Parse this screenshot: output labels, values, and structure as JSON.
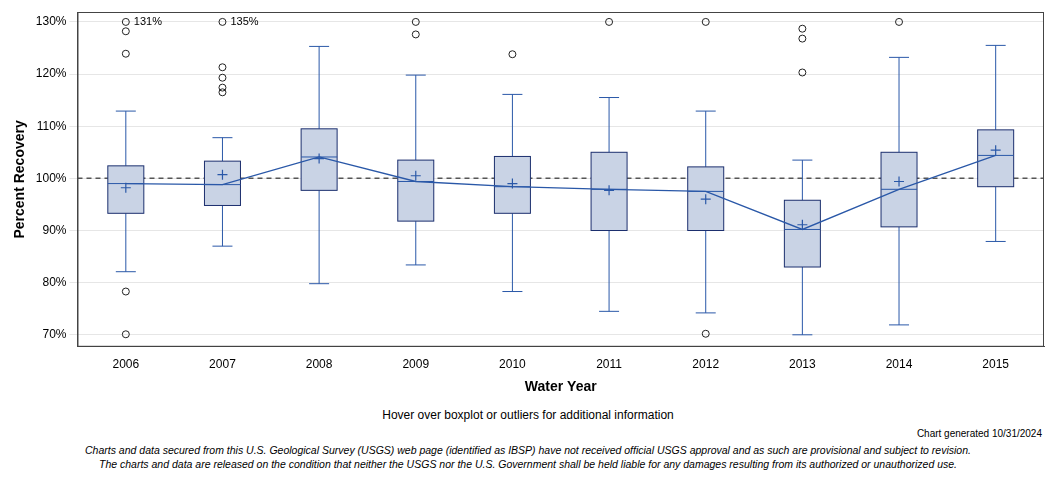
{
  "chart_data": {
    "type": "boxplot",
    "x_label": "Water Year",
    "y_label": "Percent Recovery",
    "categories": [
      "2006",
      "2007",
      "2008",
      "2009",
      "2010",
      "2011",
      "2012",
      "2013",
      "2014",
      "2015"
    ],
    "boxes": [
      {
        "whisker_low": 82.1,
        "q1": 93.3,
        "median": 99.0,
        "q3": 102.4,
        "whisker_high": 112.9,
        "mean": 98.2,
        "outliers": [
          130,
          128.2,
          123.9,
          78.3,
          70.1
        ]
      },
      {
        "whisker_low": 87.0,
        "q1": 94.8,
        "median": 98.8,
        "q3": 103.3,
        "whisker_high": 107.8,
        "mean": 100.7,
        "outliers": [
          130,
          121.3,
          119.3,
          117.4,
          116.5
        ]
      },
      {
        "whisker_low": 79.8,
        "q1": 97.7,
        "median": 104.1,
        "q3": 109.5,
        "whisker_high": 125.3,
        "mean": 103.8,
        "outliers": []
      },
      {
        "whisker_low": 83.4,
        "q1": 91.8,
        "median": 99.4,
        "q3": 103.5,
        "whisker_high": 119.8,
        "mean": 100.5,
        "outliers": [
          130,
          127.6
        ]
      },
      {
        "whisker_low": 78.3,
        "q1": 93.3,
        "median": 98.4,
        "q3": 104.2,
        "whisker_high": 116.1,
        "mean": 99.0,
        "outliers": [
          123.8
        ]
      },
      {
        "whisker_low": 74.5,
        "q1": 90.0,
        "median": 97.9,
        "q3": 105.0,
        "whisker_high": 115.5,
        "mean": 97.7,
        "outliers": [
          130
        ]
      },
      {
        "whisker_low": 74.2,
        "q1": 90.0,
        "median": 97.5,
        "q3": 102.2,
        "whisker_high": 112.9,
        "mean": 96.0,
        "outliers": [
          130,
          70.2
        ]
      },
      {
        "whisker_low": 70.0,
        "q1": 83.0,
        "median": 90.2,
        "q3": 95.8,
        "whisker_high": 103.5,
        "mean": 91.1,
        "outliers": [
          128.7,
          126.8,
          120.3
        ]
      },
      {
        "whisker_low": 71.9,
        "q1": 90.7,
        "median": 97.9,
        "q3": 105.0,
        "whisker_high": 123.2,
        "mean": 99.4,
        "outliers": [
          130
        ]
      },
      {
        "whisker_low": 87.9,
        "q1": 98.4,
        "median": 104.4,
        "q3": 109.3,
        "whisker_high": 125.5,
        "mean": 105.4,
        "outliers": []
      }
    ],
    "color": "#2a58a8",
    "ylim": [
      67.7,
      131.9
    ],
    "yticks": [
      {
        "value": 70,
        "label": "70%"
      },
      {
        "value": 80,
        "label": "80%"
      },
      {
        "value": 90,
        "label": "90%"
      },
      {
        "value": 100,
        "label": "100%"
      },
      {
        "value": 110,
        "label": "110%"
      },
      {
        "value": 120,
        "label": "120%"
      },
      {
        "value": 130,
        "label": "130%"
      }
    ],
    "grid": true,
    "reference_line": 100,
    "annotations": [
      {
        "category": "2006",
        "y": 130,
        "text": "131%"
      },
      {
        "category": "2007",
        "y": 130,
        "text": "135%"
      }
    ],
    "hover_note": "Hover over boxplot or outliers for additional information",
    "generated": "Chart generated 10/31/2024",
    "disclaimer": [
      "Charts and data secured from this U.S. Geological Survey (USGS) web page (identified as IBSP) have not received official USGS approval and as such are provisional and subject to revision.",
      "The charts and data are released on the condition that neither the USGS nor the U.S. Government shall be held liable for any damages resulting from its authorized or unauthorized use."
    ]
  }
}
